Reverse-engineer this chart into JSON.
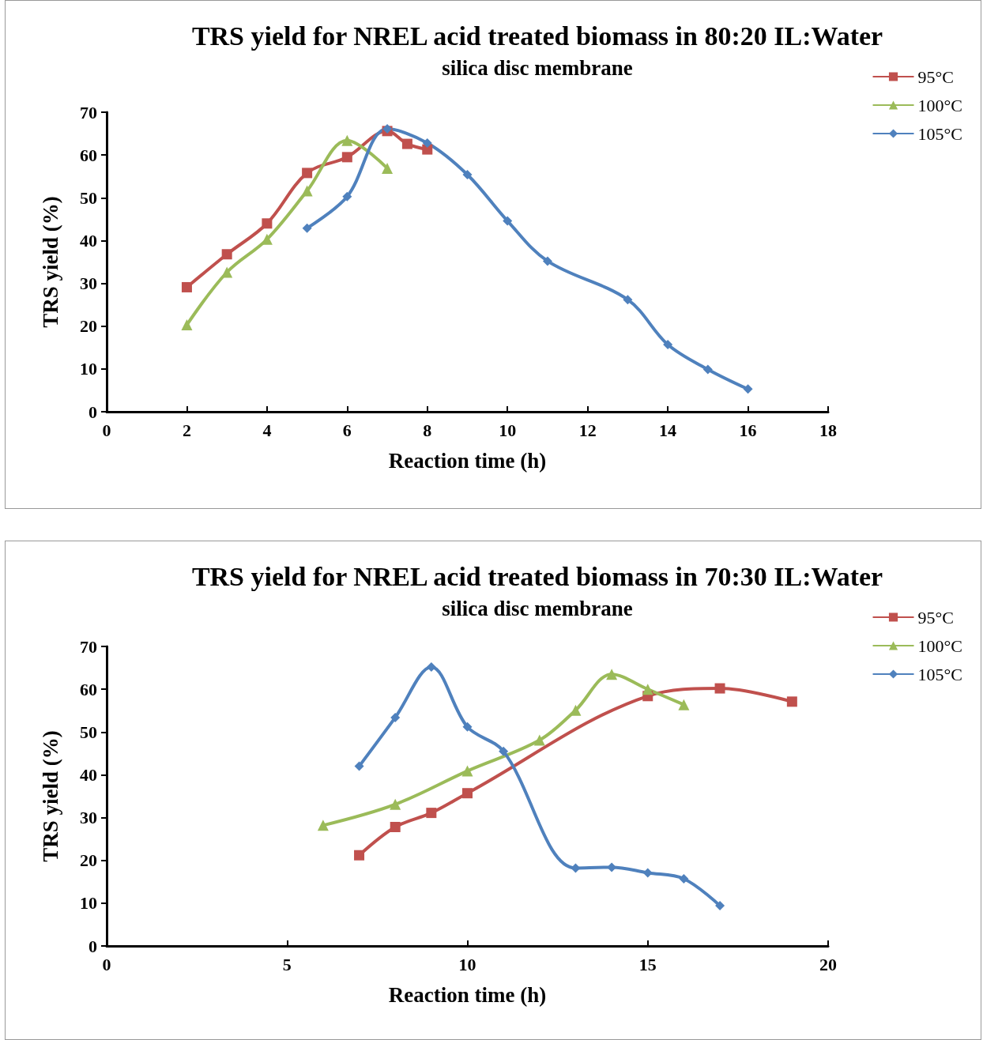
{
  "chart_data": [
    {
      "type": "line",
      "title": "TRS yield for NREL acid treated biomass in 80:20 IL:Water",
      "subtitle": "silica disc membrane",
      "xlabel": "Reaction time (h)",
      "ylabel": "TRS yield (%)",
      "xlim": [
        0,
        18
      ],
      "xticks": [
        0,
        2,
        4,
        6,
        8,
        10,
        12,
        14,
        16,
        18
      ],
      "ylim": [
        0,
        70
      ],
      "yticks": [
        0,
        10,
        20,
        30,
        40,
        50,
        60,
        70
      ],
      "grid": false,
      "legend": "top right",
      "series": [
        {
          "name": "95°C",
          "color": "#c0504d",
          "marker": "square",
          "x": [
            2,
            3,
            4,
            5,
            6,
            7,
            7.5,
            8
          ],
          "values": [
            29.1,
            36.8,
            44,
            55.8,
            59.5,
            65.6,
            62.6,
            61.3
          ]
        },
        {
          "name": "100°C",
          "color": "#9bbb59",
          "marker": "triangle",
          "x": [
            2,
            3,
            4,
            5,
            6,
            7
          ],
          "values": [
            20.3,
            32.6,
            40.3,
            51.6,
            63.4,
            56.9
          ]
        },
        {
          "name": "105°C",
          "color": "#4f81bd",
          "marker": "diamond",
          "x": [
            5,
            6,
            7,
            8,
            9,
            10,
            11,
            13,
            14,
            15,
            16
          ],
          "values": [
            42.9,
            50.3,
            66.1,
            62.8,
            55.4,
            44.6,
            35.2,
            26.2,
            15.7,
            9.9,
            5.3
          ]
        }
      ]
    },
    {
      "type": "line",
      "title": "TRS yield for NREL acid treated biomass in 70:30 IL:Water",
      "subtitle": "silica disc membrane",
      "xlabel": "Reaction time (h)",
      "ylabel": "TRS yield (%)",
      "xlim": [
        0,
        20
      ],
      "xticks": [
        0,
        5,
        10,
        15,
        20
      ],
      "ylim": [
        0,
        70
      ],
      "yticks": [
        0,
        10,
        20,
        30,
        40,
        50,
        60,
        70
      ],
      "grid": false,
      "legend": "top right",
      "series": [
        {
          "name": "95°C",
          "color": "#c0504d",
          "marker": "square",
          "x": [
            7,
            8,
            9,
            10,
            15,
            17,
            19
          ],
          "values": [
            21.2,
            27.8,
            31.1,
            35.7,
            58.4,
            60.2,
            57.1
          ]
        },
        {
          "name": "100°C",
          "color": "#9bbb59",
          "marker": "triangle",
          "x": [
            6,
            8,
            10,
            12,
            13,
            14,
            15,
            16
          ],
          "values": [
            28.2,
            33.1,
            40.9,
            48.1,
            55.1,
            63.5,
            60,
            56.4
          ]
        },
        {
          "name": "105°C",
          "color": "#4f81bd",
          "marker": "diamond",
          "x": [
            7,
            8,
            9,
            10,
            11,
            13,
            14,
            15,
            16,
            17
          ],
          "values": [
            42,
            53.4,
            65.2,
            51.2,
            45.5,
            18.2,
            18.4,
            17.1,
            15.7,
            9.4
          ]
        }
      ]
    }
  ]
}
